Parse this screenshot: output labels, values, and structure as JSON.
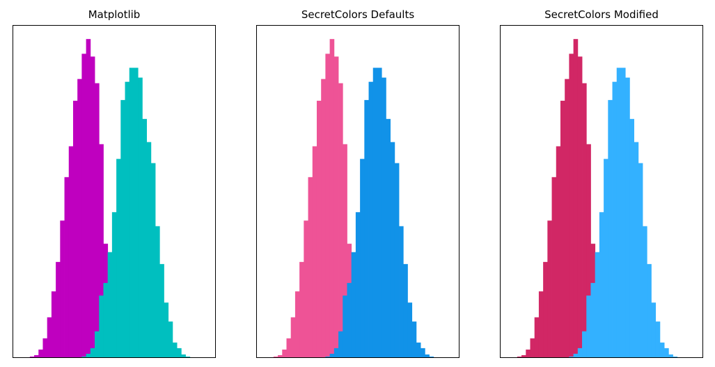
{
  "figure": {
    "panels": [
      {
        "title": "Matplotlib",
        "colors": [
          "#bf00bf",
          "#00bfbf"
        ]
      },
      {
        "title": "SecretColors Defaults",
        "colors": [
          "#ee5396",
          "#1192e8"
        ]
      },
      {
        "title": "SecretColors Modified",
        "colors": [
          "#d12765",
          "#33b1ff"
        ]
      }
    ]
  },
  "chart_data": {
    "type": "bar",
    "subtype": "histogram",
    "axes_visible": false,
    "grid": false,
    "panels": [
      "Matplotlib",
      "SecretColors Defaults",
      "SecretColors Modified"
    ],
    "series": [
      {
        "bin_start": 0,
        "bin_width": 1,
        "counts": [
          1,
          1,
          2,
          4,
          12,
          28,
          58,
          95,
          137,
          196,
          258,
          302,
          367,
          398,
          434,
          455,
          430,
          392,
          305,
          163,
          60,
          22,
          7,
          2
        ]
      },
      {
        "bin_start": 13,
        "bin_width": 1,
        "counts": [
          1,
          2,
          6,
          14,
          38,
          89,
          107,
          151,
          208,
          284,
          368,
          394,
          414,
          414,
          400,
          341,
          308,
          278,
          188,
          134,
          79,
          52,
          22,
          14,
          5,
          2,
          1
        ]
      }
    ],
    "xlim": [
      -2,
      45
    ],
    "ylim": [
      0,
      475
    ]
  }
}
